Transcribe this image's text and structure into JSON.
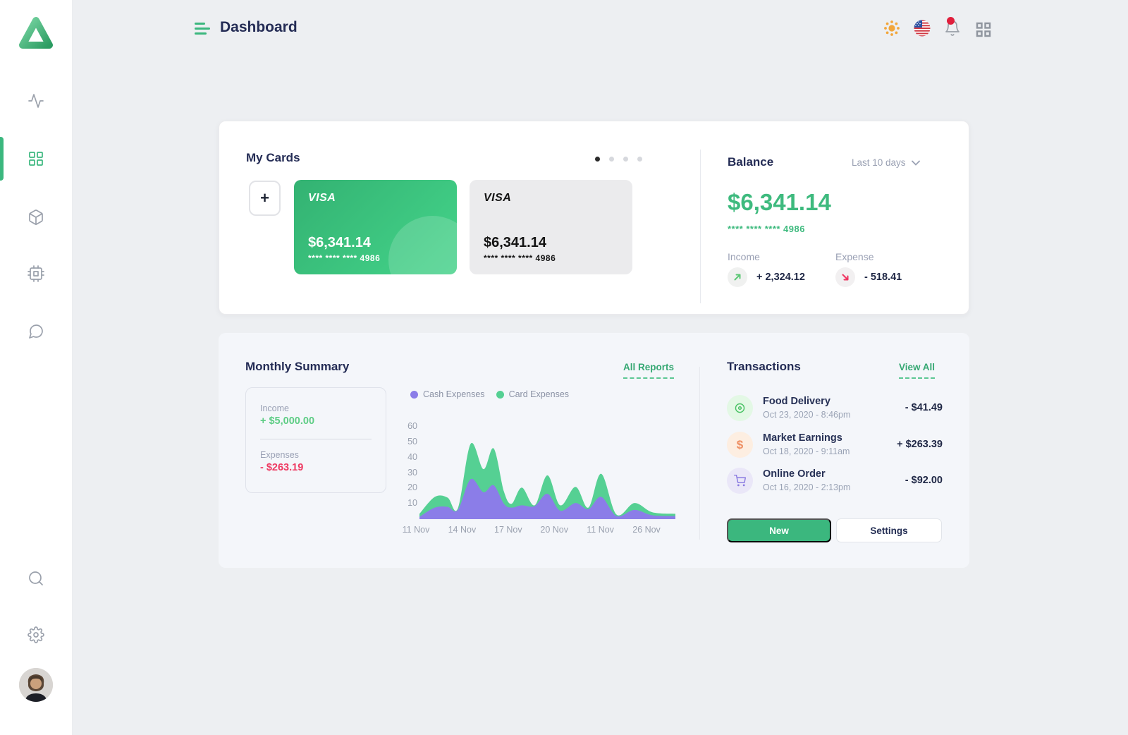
{
  "header": {
    "title": "Dashboard",
    "icons": [
      "menu-icon",
      "theme-sun-icon",
      "language-us-flag-icon",
      "notifications-bell-icon",
      "apps-grid-icon"
    ],
    "has_notification_badge": true
  },
  "sidebar": {
    "logo": "triangle-logo",
    "items": [
      {
        "icon": "activity-icon",
        "active": false
      },
      {
        "icon": "dashboard-grid-icon",
        "active": true
      },
      {
        "icon": "box-icon",
        "active": false
      },
      {
        "icon": "cpu-chip-icon",
        "active": false
      },
      {
        "icon": "chat-bubble-icon",
        "active": false
      },
      {
        "icon": "search-icon",
        "active": false
      },
      {
        "icon": "settings-gear-icon",
        "active": false
      }
    ],
    "avatar": "user-photo"
  },
  "my_cards": {
    "title": "My Cards",
    "add_button_label": "+",
    "carousel_dots": 4,
    "active_dot": 0,
    "cards": [
      {
        "brand": "VISA",
        "amount": "$6,341.14",
        "number": "**** **** **** 4986",
        "variant": "green"
      },
      {
        "brand": "VISA",
        "amount": "$6,341.14",
        "number": "**** **** **** 4986",
        "variant": "gray"
      }
    ]
  },
  "balance": {
    "title": "Balance",
    "filter_label": "Last  10 days",
    "amount": "$6,341.14",
    "card_number": "**** **** **** 4986",
    "income_label": "Income",
    "income_value": "+ 2,324.12",
    "expense_label": "Expense",
    "expense_value": "- 518.41"
  },
  "monthly_summary": {
    "title": "Monthly Summary",
    "link": "All Reports",
    "income_label": "Income",
    "income_value": "+ $5,000.00",
    "expenses_label": "Expenses",
    "expenses_value": "- $263.19"
  },
  "chart_data": {
    "type": "area",
    "stacked": true,
    "x_percent": [
      0,
      6,
      11,
      15,
      20,
      25,
      29,
      33,
      36,
      40,
      45,
      50,
      55,
      61,
      66,
      71,
      77,
      84,
      91,
      100
    ],
    "series": [
      {
        "name": "Cash Expenses",
        "color": "#8b7de8",
        "values": [
          1.5,
          7.5,
          8,
          6,
          26,
          17.5,
          22,
          10,
          7.5,
          9,
          8.5,
          16.5,
          5.5,
          10.5,
          6.5,
          14.5,
          2,
          6,
          2.5,
          2
        ]
      },
      {
        "name": "Card Expenses",
        "color": "#55d093",
        "values": [
          2,
          7,
          6,
          1,
          23,
          15,
          24,
          8,
          2.5,
          11.5,
          0.5,
          12,
          3.5,
          10.5,
          1,
          15,
          1,
          4.5,
          2,
          1.5
        ]
      }
    ],
    "y_ticks": [
      10,
      20,
      30,
      40,
      50,
      60
    ],
    "x_labels": [
      "11 Nov",
      "14 Nov",
      "17 Nov",
      "20 Nov",
      "11 Nov",
      "26 Nov"
    ],
    "ylim": [
      0,
      65
    ],
    "legend_position": "top",
    "grid": false
  },
  "transactions": {
    "title": "Transactions",
    "link": "View All",
    "items": [
      {
        "icon": "food-delivery-icon",
        "name": "Food Delivery",
        "date": "Oct 23, 2020 - 8:46pm",
        "amount": "- $41.49",
        "icon_color": "#47c163",
        "icon_bg": "#e3f8e5"
      },
      {
        "icon": "dollar-icon",
        "name": "Market Earnings",
        "date": "Oct 18, 2020 - 9:11am",
        "amount": "+ $263.39",
        "icon_color": "#ee8f63",
        "icon_bg": "#fdeee1"
      },
      {
        "icon": "cart-icon",
        "name": "Online Order",
        "date": "Oct 16, 2020 - 2:13pm",
        "amount": "- $92.00",
        "icon_color": "#8878e0",
        "icon_bg": "#eae7f8"
      }
    ],
    "new_button": "New",
    "settings_button": "Settings"
  },
  "colors": {
    "accent_green": "#3bb77e",
    "dark_navy": "#242c55",
    "income_green": "#5ecd85",
    "expense_red": "#ee3961",
    "chart_purple": "#8b7de8",
    "chart_green": "#55d093",
    "page_bg": "#edeff2",
    "panel_bg": "#f4f6fa"
  }
}
